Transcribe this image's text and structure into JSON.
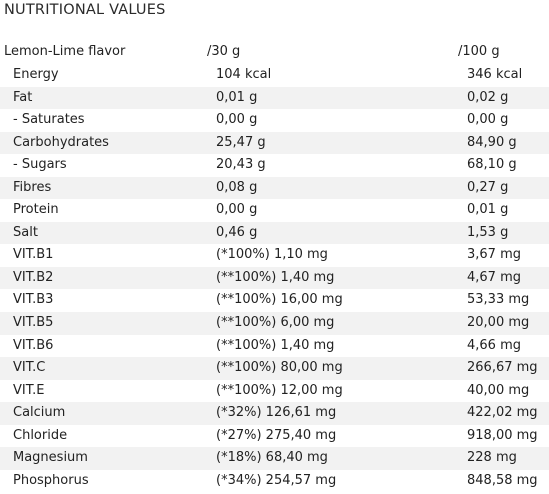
{
  "title": "NUTRITIONAL VALUES",
  "header": {
    "flavor": "Lemon-Lime flavor",
    "per30": "/30 g",
    "per100": "/100 g"
  },
  "rows": [
    {
      "name": "Energy",
      "per30": "104 kcal",
      "per100": "346 kcal"
    },
    {
      "name": "Fat",
      "per30": "0,01 g",
      "per100": "0,02 g"
    },
    {
      "name": "- Saturates",
      "per30": "0,00 g",
      "per100": "0,00 g"
    },
    {
      "name": "Carbohydrates",
      "per30": "25,47 g",
      "per100": "84,90 g"
    },
    {
      "name": "- Sugars",
      "per30": "20,43 g",
      "per100": "68,10 g"
    },
    {
      "name": "Fibres",
      "per30": "0,08 g",
      "per100": "0,27 g"
    },
    {
      "name": "Protein",
      "per30": "0,00 g",
      "per100": "0,01 g"
    },
    {
      "name": "Salt",
      "per30": "0,46 g",
      "per100": "1,53 g"
    },
    {
      "name": "VIT.B1",
      "per30": "(*100%) 1,10 mg",
      "per100": "3,67 mg"
    },
    {
      "name": "VIT.B2",
      "per30": "(**100%) 1,40 mg",
      "per100": "4,67 mg"
    },
    {
      "name": "VIT.B3",
      "per30": "(**100%) 16,00 mg",
      "per100": "53,33 mg"
    },
    {
      "name": "VIT.B5",
      "per30": "(**100%) 6,00 mg",
      "per100": "20,00 mg"
    },
    {
      "name": "VIT.B6",
      "per30": "(**100%) 1,40 mg",
      "per100": "4,66 mg"
    },
    {
      "name": "VIT.C",
      "per30": "(**100%) 80,00 mg",
      "per100": "266,67 mg"
    },
    {
      "name": "VIT.E",
      "per30": "(**100%) 12,00 mg",
      "per100": "40,00 mg"
    },
    {
      "name": "Calcium",
      "per30": "(*32%) 126,61 mg",
      "per100": "422,02 mg"
    },
    {
      "name": "Chloride",
      "per30": "(*27%) 275,40 mg",
      "per100": "918,00 mg"
    },
    {
      "name": "Magnesium",
      "per30": "(*18%) 68,40 mg",
      "per100": "228 mg"
    },
    {
      "name": "Phosphorus",
      "per30": "(*34%) 254,57 mg",
      "per100": "848,58 mg"
    }
  ],
  "colors": {
    "shaded_row": "#f2f2f2",
    "text": "#222222"
  }
}
